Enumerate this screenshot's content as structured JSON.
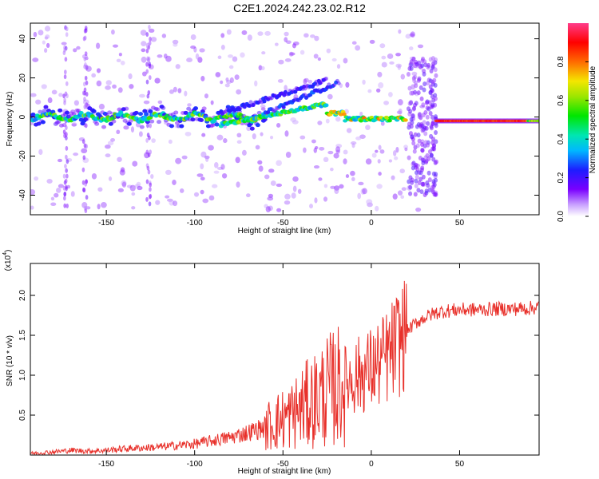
{
  "title": "C2E1.2024.242.23.02.R12",
  "colors": {
    "snr_line": "#e8302a",
    "axis": "#000000",
    "background": "#ffffff"
  },
  "chart_data": [
    {
      "type": "heatmap",
      "xlabel": "Height of straight line (km)",
      "ylabel": "Frequency (Hz)",
      "xlim": [
        -193,
        95
      ],
      "ylim": [
        -50,
        48
      ],
      "xticks": [
        -150,
        -100,
        -50,
        0,
        50
      ],
      "yticks": [
        -40,
        -20,
        0,
        20,
        40
      ],
      "colorbar": {
        "label": "Normalized spectral amplitude",
        "range": [
          0,
          1
        ],
        "ticks": [
          0.0,
          0.2,
          0.4,
          0.6,
          0.8
        ],
        "colormap": "rainbow (violet → blue → cyan → green → yellow → red)"
      },
      "features": [
        {
          "x_range": [
            -193,
            -60
          ],
          "freq_center": 0,
          "note": "main trace near 0 Hz with broad scatter"
        },
        {
          "x_range": [
            -80,
            -20
          ],
          "freq_center_start": -5,
          "freq_center_end": 18,
          "note": "rising branch"
        },
        {
          "x_range": [
            -10,
            20
          ],
          "freq_center": -1,
          "note": "strong trace"
        },
        {
          "x_range": [
            20,
            37
          ],
          "freq_range": [
            -40,
            30
          ],
          "note": "broadband burst"
        },
        {
          "x_range": [
            37,
            95
          ],
          "freq_center": -2,
          "note": "narrow high-amplitude line"
        }
      ]
    },
    {
      "type": "line",
      "xlabel": "Height of straight line (km)",
      "ylabel": "SNR (10 * v/v)",
      "y_scale_label": "(x10",
      "y_scale_exp": "4",
      "xlim": [
        -193,
        95
      ],
      "ylim": [
        0,
        24000
      ],
      "xticks": [
        -150,
        -100,
        -50,
        0,
        50
      ],
      "yticks": [
        5000,
        10000,
        15000,
        20000
      ],
      "ytick_labels": [
        "0.5",
        "1.0",
        "1.5",
        "2.0"
      ],
      "series": [
        {
          "x": [
            -193,
            -180,
            -170,
            -160,
            -150,
            -140,
            -130,
            -120,
            -110,
            -100,
            -90,
            -80,
            -70,
            -60,
            -50,
            -45,
            -40,
            -35,
            -30,
            -25,
            -20,
            -15,
            -10,
            -5,
            0,
            5,
            10,
            15,
            20,
            25,
            30,
            35,
            40,
            50,
            60,
            70,
            80,
            90,
            95
          ],
          "y": [
            200,
            400,
            600,
            500,
            600,
            800,
            900,
            1000,
            1200,
            1400,
            1800,
            2200,
            2800,
            3500,
            4500,
            5000,
            5800,
            6500,
            7200,
            8000,
            8500,
            9200,
            9800,
            10200,
            10800,
            11500,
            12500,
            14000,
            15500,
            16500,
            17200,
            17700,
            18000,
            18200,
            18200,
            18300,
            18300,
            18400,
            18600
          ]
        }
      ]
    }
  ]
}
